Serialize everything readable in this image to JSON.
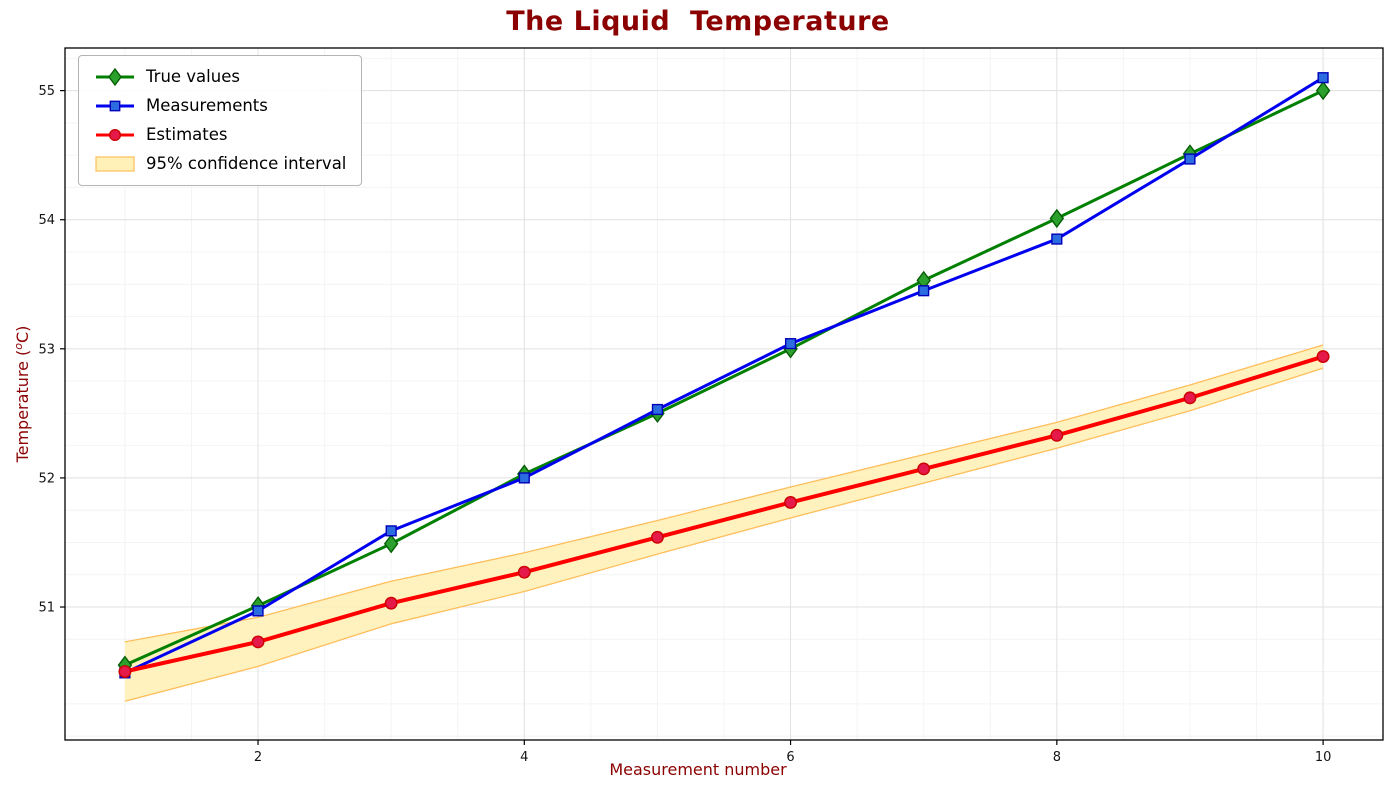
{
  "figure": {
    "title": "The Liquid  Temperature",
    "title_color": "#8B0000",
    "axis_label_color": "#8B0000",
    "xlabel": "Measurement number",
    "ylabel": {
      "prefix": "Temperature (",
      "sup": "o",
      "suffix": "C)"
    }
  },
  "chart_data": {
    "type": "line",
    "title": "The Liquid  Temperature",
    "xlabel": "Measurement number",
    "ylabel": "Temperature (°C)",
    "x": [
      1,
      2,
      3,
      4,
      5,
      6,
      7,
      8,
      9,
      10
    ],
    "series": [
      {
        "name": "True values",
        "marker": "diamond",
        "color": "#008000",
        "marker_fill": "#2ca02c",
        "marker_edge": "#045d04",
        "values": [
          50.55,
          51.01,
          51.49,
          52.03,
          52.5,
          53.0,
          53.53,
          54.01,
          54.51,
          55.0
        ]
      },
      {
        "name": "Measurements",
        "marker": "square",
        "color": "#0000ee",
        "marker_fill": "#2b6ce0",
        "marker_edge": "#0000b8",
        "values": [
          50.49,
          50.97,
          51.59,
          52.0,
          52.53,
          53.04,
          53.45,
          53.85,
          54.47,
          55.1
        ]
      },
      {
        "name": "Estimates",
        "marker": "circle",
        "color": "#ff0000",
        "marker_fill": "#e6194b",
        "marker_edge": "#cc0000",
        "values": [
          50.5,
          50.73,
          51.03,
          51.27,
          51.54,
          51.81,
          52.07,
          52.33,
          52.62,
          52.94
        ]
      }
    ],
    "confidence_band": {
      "name": "95% confidence interval",
      "fill": "#fff1b8",
      "edge": "#ffbe5c",
      "upper": [
        50.73,
        50.92,
        51.2,
        51.42,
        51.67,
        51.93,
        52.18,
        52.43,
        52.72,
        53.03
      ],
      "lower": [
        50.27,
        50.54,
        50.87,
        51.12,
        51.41,
        51.69,
        51.96,
        52.23,
        52.52,
        52.85
      ]
    },
    "xlim": [
      0.55,
      10.45
    ],
    "ylim": [
      49.97,
      55.33
    ],
    "xticks": [
      2,
      4,
      6,
      8,
      10
    ],
    "yticks": [
      51,
      52,
      53,
      54,
      55
    ],
    "grid": true,
    "legend_position": "upper left"
  }
}
